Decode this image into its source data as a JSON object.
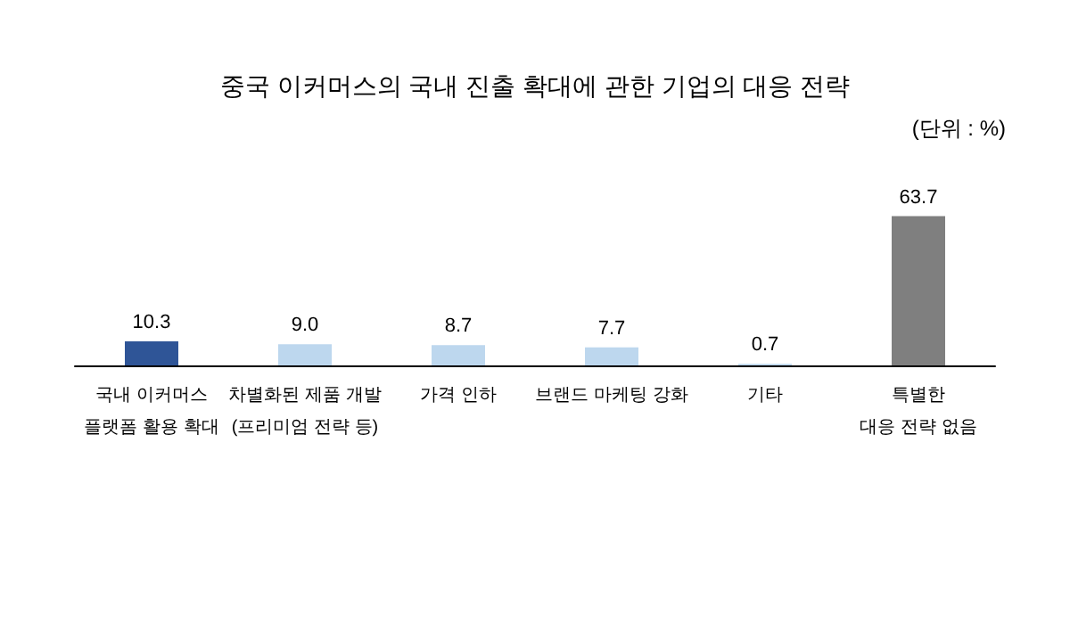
{
  "chart_data": {
    "type": "bar",
    "title": "중국 이커머스의 국내 진출 확대에 관한 기업의 대응 전략",
    "annotations": [
      "(단위 : %)"
    ],
    "categories": [
      "국내 이커머스\n플랫폼 활용 확대",
      "차별화된 제품 개발\n(프리미엄 전략 등)",
      "가격 인하",
      "브랜드 마케팅 강화",
      "기타",
      "특별한\n대응 전략 없음"
    ],
    "values": [
      10.3,
      9.0,
      8.7,
      7.7,
      0.7,
      63.7
    ],
    "colors": [
      "#2f5597",
      "#bdd7ee",
      "#bdd7ee",
      "#bdd7ee",
      "#bdd7ee",
      "#7f7f7f"
    ],
    "value_labels": [
      "10.3",
      "9.0",
      "8.7",
      "7.7",
      "0.7",
      "63.7"
    ]
  }
}
